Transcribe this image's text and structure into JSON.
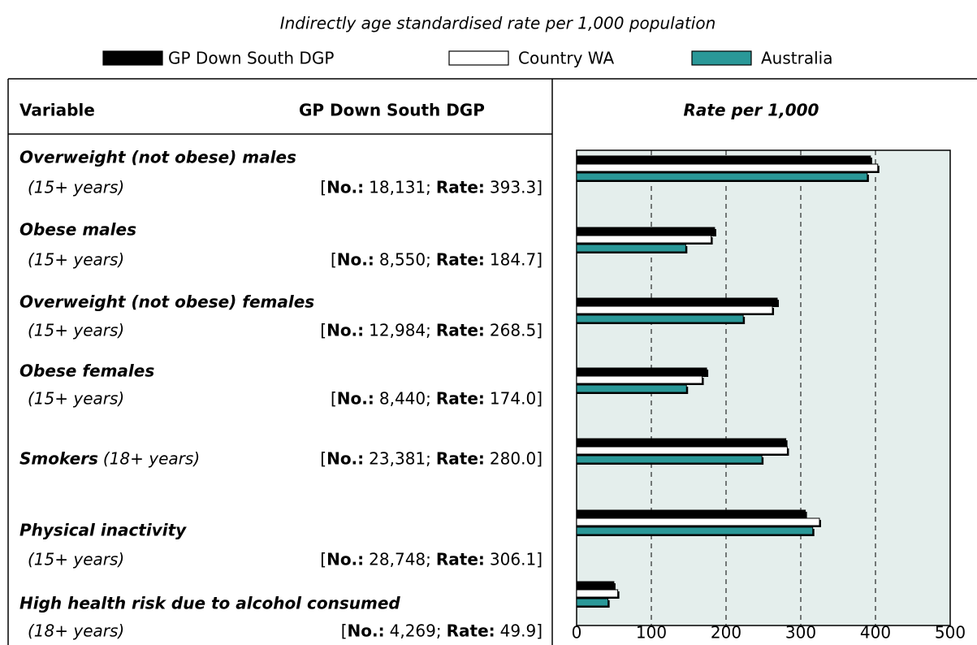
{
  "chart_data": {
    "type": "bar",
    "orientation": "horizontal",
    "title": "Indirectly age standardised rate per 1,000 population",
    "header": {
      "variable": "Variable",
      "area": "GP Down South DGP",
      "rate": "Rate per 1,000"
    },
    "no_label": "No.:",
    "rate_label": "Rate:",
    "categories": [
      "Overweight (not obese) males",
      "Obese males",
      "Overweight (not obese) females",
      "Obese females",
      "Smokers",
      "Physical inactivity",
      "High health risk due to alcohol consumed"
    ],
    "ages": [
      "(15+ years)",
      "(15+ years)",
      "(15+ years)",
      "(15+ years)",
      "(18+ years)",
      "(15+ years)",
      "(18+ years)"
    ],
    "counts": [
      "18,131",
      "8,550",
      "12,984",
      "8,440",
      "23,381",
      "28,748",
      "4,269"
    ],
    "series": [
      {
        "name": "GP Down South DGP",
        "color": "#000000",
        "values": [
          393.3,
          184.7,
          268.5,
          174.0,
          280.0,
          306.1,
          49.9
        ],
        "value_labels": [
          "393.3",
          "184.7",
          "268.5",
          "174.0",
          "280.0",
          "306.1",
          "49.9"
        ]
      },
      {
        "name": "Country WA",
        "color": "#ffffff",
        "values": [
          403,
          180,
          262,
          168,
          282,
          325,
          55
        ]
      },
      {
        "name": "Australia",
        "color": "#2a9898",
        "values": [
          389,
          146,
          223,
          147,
          248,
          316,
          42
        ]
      }
    ],
    "xlim": [
      0,
      500
    ],
    "xticks": [
      0,
      100,
      200,
      300,
      400,
      500
    ],
    "grid": true
  }
}
